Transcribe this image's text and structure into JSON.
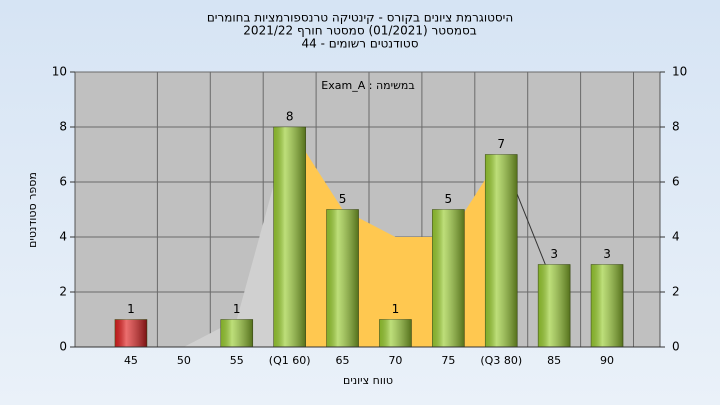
{
  "chart_data": {
    "type": "bar",
    "title": "היסטוגרמת ציונים בקורס - קינטיקה טרנספורמציות בחומרים",
    "subtitle": "בסמסטר  (01/2021)  סמסטר חורף 2021/22",
    "subtitle2": "סטודנטים רשומים - 44",
    "annotation": "במשימה : Exam_A",
    "x_label": "טווח ציונים",
    "y_label": "מספר סטודנטים",
    "categories": [
      "45",
      "50",
      "55",
      "(Q1 60)",
      "65",
      "70",
      "75",
      "(Q3 80)",
      "85",
      "90"
    ],
    "values": [
      1,
      0,
      1,
      8,
      5,
      1,
      5,
      7,
      3,
      3
    ],
    "colors": [
      "#e02020",
      "#9acd32",
      "#9acd32",
      "#9acd32",
      "#9acd32",
      "#9acd32",
      "#9acd32",
      "#9acd32",
      "#9acd32",
      "#9acd32"
    ],
    "lower_tail_values": [
      null,
      0,
      1,
      8,
      null,
      null,
      null,
      null,
      null,
      null
    ],
    "lower_tail_color": "#d0d0d0",
    "iqr_values": [
      null,
      null,
      null,
      8,
      5,
      4,
      4,
      7,
      null,
      null
    ],
    "iqr_color": "#ffc850",
    "upper_tail_values": [
      null,
      null,
      null,
      null,
      null,
      null,
      null,
      7,
      2.2,
      null
    ],
    "upper_tail_color": "#333333",
    "ylim": [
      0,
      10
    ],
    "yticks": [
      0,
      2,
      4,
      6,
      8,
      10
    ],
    "y2lim": [
      0,
      10
    ],
    "y2ticks": [
      0,
      2,
      4,
      6,
      8,
      10
    ],
    "grid": true
  }
}
